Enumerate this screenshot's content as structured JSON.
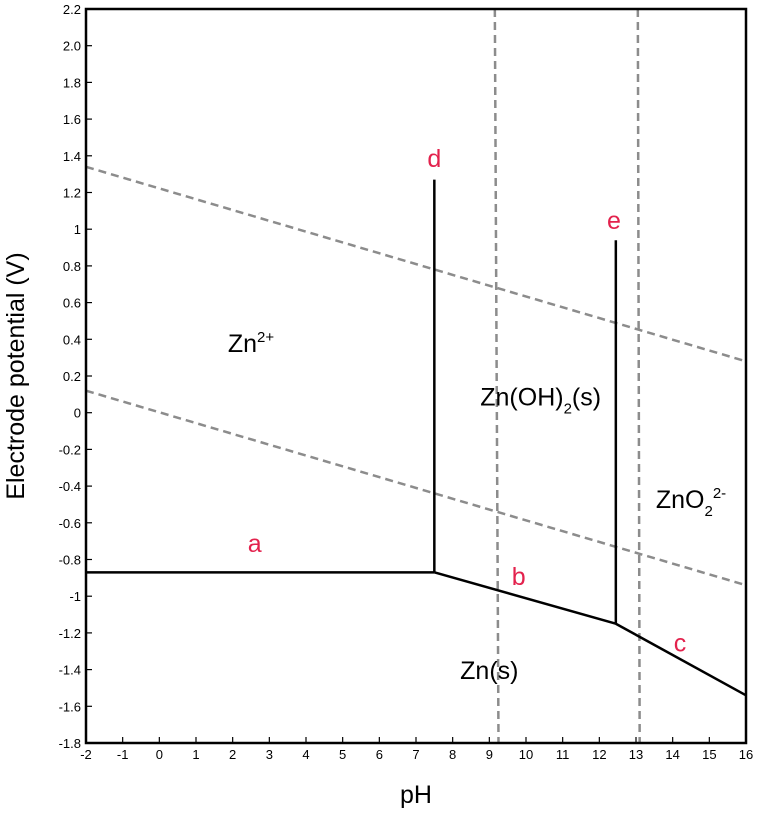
{
  "chart_data": {
    "type": "line",
    "xlabel": "pH",
    "ylabel": "Electrode potential (V)",
    "xlim": [
      -2,
      16
    ],
    "ylim": [
      -1.8,
      2.2
    ],
    "x_ticks": [
      -2,
      -1,
      0,
      1,
      2,
      3,
      4,
      5,
      6,
      7,
      8,
      9,
      10,
      11,
      12,
      13,
      14,
      15,
      16
    ],
    "y_ticks": [
      2.2,
      2.0,
      1.8,
      1.6,
      1.4,
      1.2,
      1,
      0.8,
      0.6,
      0.4,
      0.2,
      0,
      -0.2,
      -0.4,
      -0.6,
      -0.8,
      -1,
      -1.2,
      -1.4,
      -1.6,
      -1.8
    ],
    "y_tick_labels": [
      "2.2",
      "2.0",
      "1.8",
      "1.6",
      "1.4",
      "1.2",
      "1",
      "0.8",
      "0.6",
      "0.4",
      "0.2",
      "0",
      "-0.2",
      "-0.4",
      "-0.6",
      "-0.8",
      "-1",
      "-1.2",
      "-1.4",
      "-1.6",
      "-1.8"
    ],
    "grid": false,
    "label_color": "#e3224d",
    "solid_lines": [
      {
        "label": "a",
        "points": [
          [
            -2,
            -0.87
          ],
          [
            7.5,
            -0.87
          ]
        ]
      },
      {
        "label": "b",
        "points": [
          [
            7.5,
            -0.87
          ],
          [
            12.45,
            -1.15
          ]
        ]
      },
      {
        "label": "c",
        "points": [
          [
            12.45,
            -1.15
          ],
          [
            16,
            -1.54
          ]
        ]
      },
      {
        "label": "d",
        "points": [
          [
            7.5,
            -0.87
          ],
          [
            7.5,
            1.27
          ]
        ]
      },
      {
        "label": "e",
        "points": [
          [
            12.45,
            -1.15
          ],
          [
            12.45,
            0.94
          ]
        ]
      }
    ],
    "dashed_lines": [
      {
        "points": [
          [
            -2,
            1.34
          ],
          [
            16,
            0.28
          ]
        ]
      },
      {
        "points": [
          [
            -2,
            0.12
          ],
          [
            16,
            -0.94
          ]
        ]
      },
      {
        "points": [
          [
            9.15,
            2.2
          ],
          [
            9.25,
            -1.8
          ]
        ]
      },
      {
        "points": [
          [
            13.05,
            2.2
          ],
          [
            13.1,
            -1.8
          ]
        ]
      }
    ],
    "line_labels": [
      {
        "text": "a",
        "x": 2.6,
        "y": -0.76
      },
      {
        "text": "b",
        "x": 9.8,
        "y": -0.94
      },
      {
        "text": "c",
        "x": 14.2,
        "y": -1.3
      },
      {
        "text": "d",
        "x": 7.5,
        "y": 1.34
      },
      {
        "text": "e",
        "x": 12.4,
        "y": 1.0
      }
    ],
    "regions": [
      {
        "base": "Zn",
        "sub": "",
        "sup": "2+",
        "tail": "",
        "x": 2.5,
        "y": 0.33
      },
      {
        "base": "Zn(OH)",
        "sub": "2",
        "sup": "",
        "tail": "(s)",
        "x": 10.4,
        "y": 0.04
      },
      {
        "base": "ZnO",
        "sub": "2",
        "sup": "2-",
        "tail": "",
        "x": 14.5,
        "y": -0.52
      },
      {
        "base": "Zn(s)",
        "sub": "",
        "sup": "",
        "tail": "",
        "x": 9.0,
        "y": -1.45
      }
    ]
  }
}
